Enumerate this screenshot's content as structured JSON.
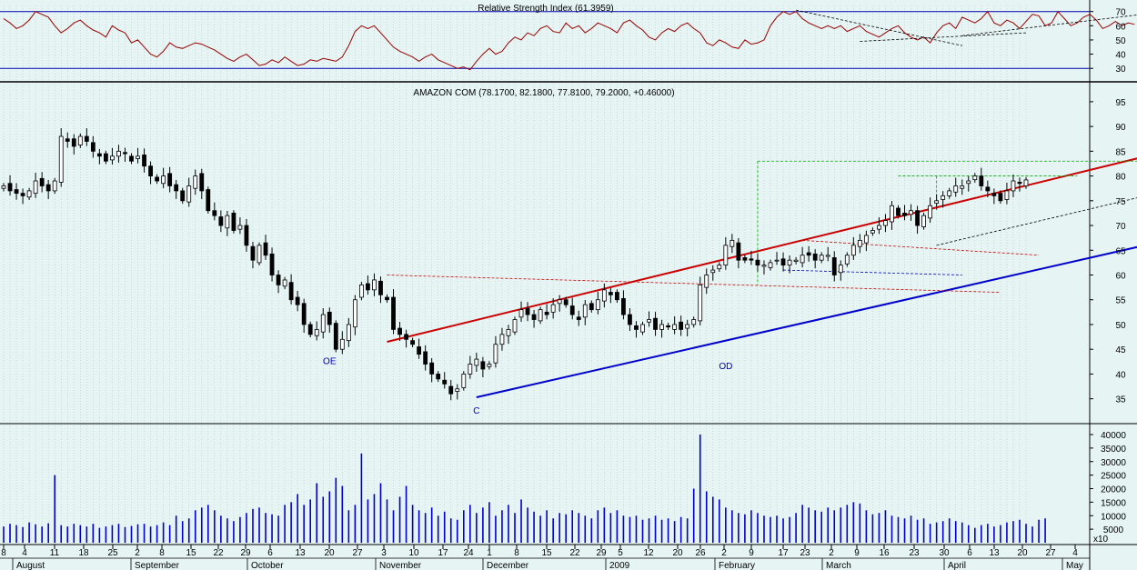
{
  "chart_data": [
    {
      "type": "line",
      "title": "Relative Strength Index (61.3959)",
      "ylim": [
        25,
        73
      ],
      "y_ticks": [
        30,
        40,
        50,
        60,
        70
      ],
      "reference_lines": [
        30,
        70
      ],
      "series": [
        {
          "values": [
            65,
            62,
            58,
            60,
            64,
            70,
            68,
            66,
            60,
            55,
            58,
            62,
            64,
            60,
            57,
            55,
            52,
            60,
            57,
            55,
            48,
            50,
            45,
            40,
            38,
            42,
            48,
            45,
            44,
            46,
            48,
            47,
            45,
            43,
            40,
            37,
            35,
            38,
            40,
            36,
            32,
            33,
            36,
            34,
            38,
            35,
            32,
            33,
            36,
            35,
            37,
            36,
            35,
            38,
            46,
            56,
            60,
            58,
            60,
            55,
            50,
            45,
            42,
            40,
            38,
            35,
            38,
            40,
            36,
            34,
            32,
            30,
            31,
            29,
            35,
            40,
            44,
            40,
            42,
            48,
            52,
            50,
            55,
            53,
            58,
            60,
            56,
            55,
            62,
            58,
            60,
            55,
            58,
            62,
            60,
            58,
            55,
            62,
            64,
            60,
            57,
            52,
            50,
            55,
            58,
            56,
            60,
            62,
            58,
            55,
            48,
            46,
            50,
            48,
            45,
            44,
            50,
            47,
            48,
            50,
            60,
            66,
            70,
            68,
            70,
            65,
            62,
            60,
            58,
            60,
            58,
            60,
            56,
            58,
            60,
            56,
            54,
            52,
            55,
            58,
            60,
            55,
            52,
            50,
            52,
            48,
            55,
            60,
            62,
            58,
            66,
            64,
            62,
            65,
            70,
            62,
            60,
            64,
            62,
            58,
            63,
            68,
            67,
            60,
            62,
            70,
            65,
            60,
            62,
            66,
            68,
            64,
            58,
            60,
            63,
            60,
            62,
            61
          ]
        }
      ],
      "trend_lines": [
        {
          "style": "dashed",
          "from": {
            "bar": 124,
            "rsi": 71
          },
          "to": {
            "bar": 150,
            "rsi": 46
          }
        },
        {
          "style": "dashed",
          "from": {
            "bar": 134,
            "rsi": 49
          },
          "to": {
            "bar": 160,
            "rsi": 55
          }
        },
        {
          "style": "dashed",
          "from": {
            "bar": 150,
            "rsi": 53
          },
          "to": {
            "bar": 180,
            "rsi": 69
          }
        }
      ]
    },
    {
      "type": "candlestick",
      "title": "AMAZON COM (78.1700, 82.1800, 77.8100, 79.2000, +0.46000)",
      "ylim": [
        30,
        97
      ],
      "y_ticks": [
        35,
        40,
        45,
        50,
        55,
        60,
        65,
        70,
        75,
        80,
        85,
        90,
        95
      ],
      "closes": [
        78,
        77,
        76.5,
        76,
        77,
        79,
        78,
        77,
        79,
        88,
        87,
        86,
        88,
        87,
        85,
        84,
        83,
        84,
        85,
        84.5,
        83,
        84,
        82,
        80,
        79,
        80,
        78,
        77,
        75,
        78,
        80,
        77,
        73,
        72,
        70,
        72,
        69,
        70,
        66,
        63,
        66,
        64,
        60,
        58,
        59,
        55,
        54,
        50,
        48,
        49,
        52,
        50,
        45,
        47,
        50,
        55,
        58,
        57,
        59,
        56,
        55,
        49,
        48,
        47,
        46,
        44,
        42,
        40,
        39,
        38,
        36,
        37,
        40,
        42,
        43,
        41,
        42,
        46,
        48,
        49,
        51,
        53,
        52,
        51,
        53,
        52,
        54,
        55,
        54,
        52,
        51,
        54,
        53,
        55,
        57,
        56,
        55,
        52,
        50,
        49,
        50,
        51,
        49,
        50,
        49.5,
        50,
        49,
        50,
        51,
        58,
        60,
        61,
        62,
        66,
        67,
        63,
        63,
        63,
        62,
        62,
        62.5,
        63,
        62,
        63,
        63,
        64,
        64,
        63,
        64,
        64,
        60,
        62,
        64,
        66,
        67,
        68,
        69,
        70,
        71,
        74,
        72,
        72,
        73,
        70,
        72,
        74,
        75,
        76,
        77,
        78,
        78,
        79,
        80,
        78,
        77,
        76,
        75,
        77,
        79,
        78.5,
        79.2
      ],
      "bars_spacing_note": "one candle per trading day, Jul 28 2008 - Apr 22 2009",
      "annotations": [
        {
          "text": "OE",
          "bar": 51,
          "price": 42
        },
        {
          "text": "C",
          "bar": 74,
          "price": 32
        },
        {
          "text": "OD",
          "bar": 113,
          "price": 41
        }
      ],
      "trend_lines": [
        {
          "color": "#cc0000",
          "style": "solid",
          "from": {
            "bar": 60,
            "price": 46.5
          },
          "to": {
            "bar": 182,
            "price": 85
          }
        },
        {
          "color": "#0000cc",
          "style": "solid",
          "from": {
            "bar": 74,
            "price": 35.3
          },
          "to": {
            "bar": 182,
            "price": 67
          }
        },
        {
          "color": "#000000",
          "style": "dashed",
          "from": {
            "bar": 146,
            "price": 66
          },
          "to": {
            "bar": 182,
            "price": 77
          }
        },
        {
          "color": "#cc0000",
          "style": "dashed",
          "from": {
            "bar": 60,
            "price": 60
          },
          "to": {
            "bar": 156,
            "price": 56.5
          }
        },
        {
          "color": "#cc0000",
          "style": "dashed",
          "from": {
            "bar": 125,
            "price": 67
          },
          "to": {
            "bar": 162,
            "price": 64
          }
        },
        {
          "color": "#0000cc",
          "style": "dashed",
          "from": {
            "bar": 122,
            "price": 61
          },
          "to": {
            "bar": 150,
            "price": 60
          }
        },
        {
          "color": "#00aa00",
          "style": "dashed",
          "from": {
            "bar": 118,
            "price": 83
          },
          "to": {
            "bar": 186,
            "price": 83
          }
        },
        {
          "color": "#00aa00",
          "style": "dashed",
          "from": {
            "bar": 140,
            "price": 80
          },
          "to": {
            "bar": 168,
            "price": 80
          }
        }
      ]
    },
    {
      "type": "bar",
      "ylim": [
        0,
        42000
      ],
      "y_ticks": [
        5000,
        10000,
        15000,
        20000,
        25000,
        30000,
        35000,
        40000
      ],
      "y_unit_label": "x10",
      "values": [
        6000,
        7000,
        6500,
        5800,
        7500,
        6800,
        6000,
        7200,
        25000,
        6500,
        6000,
        7000,
        6500,
        6000,
        7000,
        5500,
        6000,
        6500,
        7000,
        5800,
        6200,
        6800,
        7000,
        6000,
        6500,
        7500,
        6500,
        10000,
        8000,
        9000,
        12000,
        13000,
        14000,
        12000,
        10000,
        9000,
        8000,
        9500,
        11000,
        12500,
        13000,
        11000,
        10500,
        10000,
        14000,
        15000,
        18000,
        14000,
        16000,
        22000,
        17000,
        19000,
        24000,
        21000,
        12000,
        14000,
        33000,
        16000,
        18000,
        22000,
        16000,
        12000,
        17000,
        21000,
        14000,
        12000,
        11000,
        13000,
        10000,
        11500,
        9000,
        8500,
        12000,
        14000,
        11000,
        13000,
        15000,
        10000,
        12000,
        14000,
        11000,
        16000,
        13000,
        11500,
        10000,
        12000,
        9000,
        11000,
        10500,
        12000,
        11000,
        10000,
        9000,
        12000,
        13000,
        11000,
        12000,
        10000,
        9500,
        10000,
        8500,
        9000,
        10000,
        8500,
        9000,
        8000,
        9500,
        9000,
        20000,
        40000,
        19000,
        17000,
        16000,
        13000,
        12000,
        11000,
        10500,
        12000,
        11000,
        10000,
        9500,
        10000,
        9000,
        9500,
        11000,
        14000,
        13000,
        12000,
        11500,
        13000,
        12000,
        13000,
        14000,
        15000,
        14500,
        12000,
        10500,
        11000,
        12000,
        10000,
        9500,
        9000,
        10000,
        8500,
        9000,
        7000,
        7500,
        8000,
        9000,
        8000,
        7500,
        6500,
        5500,
        6500,
        7000,
        6000,
        6500,
        7500,
        8000,
        8500,
        7000,
        6000,
        8500,
        9000
      ],
      "x_ticks": [
        "8",
        "4",
        "11",
        "18",
        "25",
        "2",
        "8",
        "15",
        "22",
        "29",
        "6",
        "13",
        "20",
        "27",
        "3",
        "10",
        "17",
        "24",
        "1",
        "8",
        "15",
        "22",
        "29",
        "5",
        "12",
        "20",
        "26",
        "2",
        "9",
        "17",
        "23",
        "2",
        "9",
        "16",
        "23",
        "30",
        "6",
        "13",
        "20",
        "27",
        "4"
      ],
      "x_month_labels": [
        "August",
        "September",
        "October",
        "November",
        "December",
        "2009",
        "February",
        "March",
        "April",
        "May"
      ]
    }
  ]
}
